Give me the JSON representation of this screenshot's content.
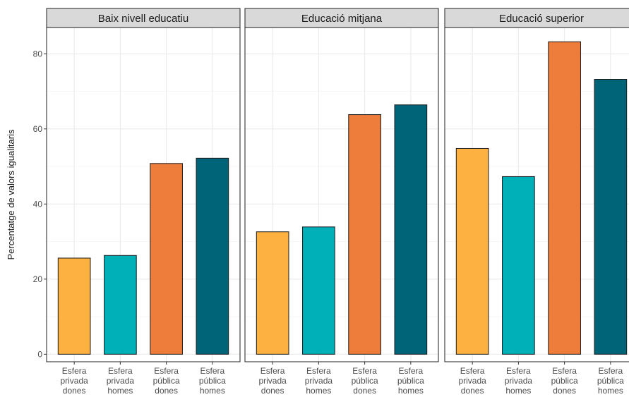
{
  "chart_data": {
    "type": "bar",
    "ylabel": "Percentatge de valors igualitaris",
    "ylim": [
      -2,
      87
    ],
    "yticks": [
      0,
      20,
      40,
      60,
      80
    ],
    "grid": true,
    "categories": [
      [
        "Esfera",
        "privada",
        "dones"
      ],
      [
        "Esfera",
        "privada",
        "homes"
      ],
      [
        "Esfera",
        "pública",
        "dones"
      ],
      [
        "Esfera",
        "pública",
        "homes"
      ]
    ],
    "colors": [
      "#FDB140",
      "#00B0B9",
      "#EE7C3A",
      "#006478"
    ],
    "panels": [
      {
        "title": "Baix nivell educatiu",
        "values": [
          25.6,
          26.3,
          50.8,
          52.2
        ]
      },
      {
        "title": "Educació mitjana",
        "values": [
          32.6,
          33.9,
          63.8,
          66.4
        ]
      },
      {
        "title": "Educació superior",
        "values": [
          54.8,
          47.3,
          83.2,
          73.2
        ]
      }
    ]
  }
}
